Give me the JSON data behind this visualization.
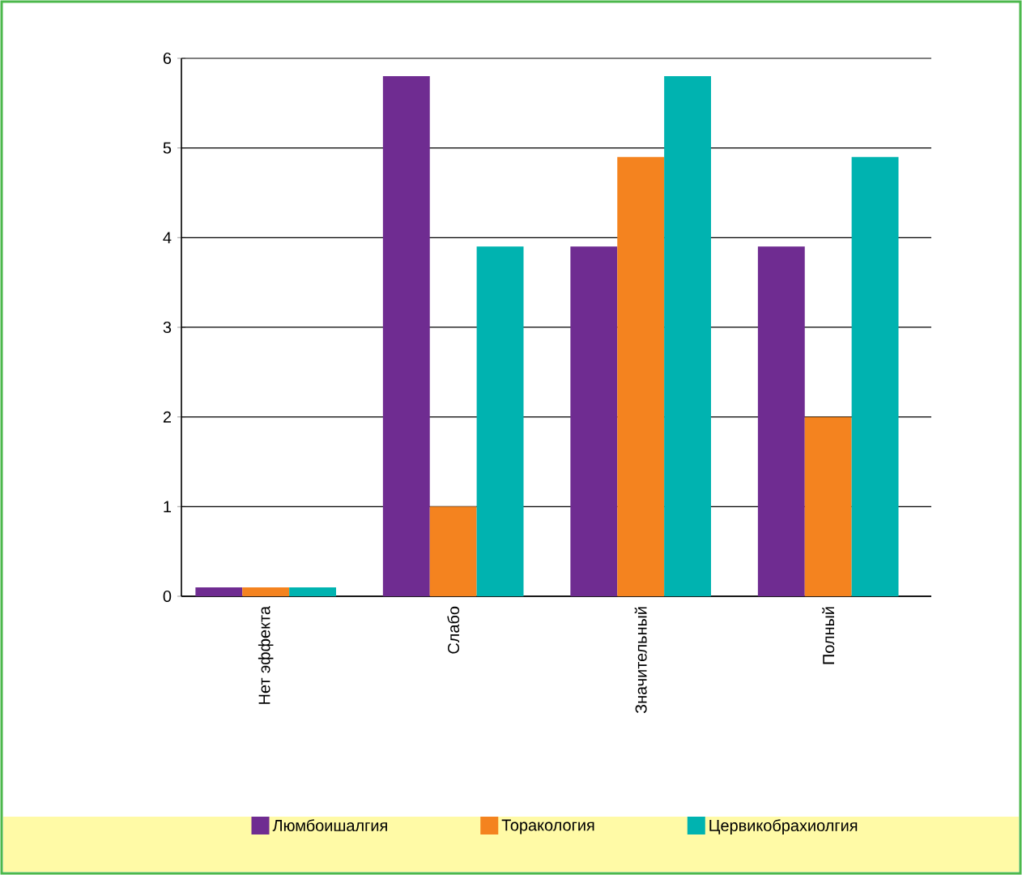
{
  "chart_data": {
    "type": "bar",
    "categories": [
      "Нет эффекта",
      "Слабо",
      "Значительный",
      "Полный"
    ],
    "series": [
      {
        "name": "Люмбоишалгия",
        "color": "#6f2c91",
        "values": [
          0.1,
          5.8,
          3.9,
          3.9
        ]
      },
      {
        "name": "Торакология",
        "color": "#f4831f",
        "values": [
          0.1,
          1.0,
          4.9,
          2.0
        ]
      },
      {
        "name": "Цервикобрахиолгия",
        "color": "#00b3b0",
        "values": [
          0.1,
          3.9,
          5.8,
          4.9
        ]
      }
    ],
    "ylim": [
      0,
      6
    ],
    "yticks": [
      0,
      1,
      2,
      3,
      4,
      5,
      6
    ],
    "grid": "y",
    "legend": "bottom"
  }
}
